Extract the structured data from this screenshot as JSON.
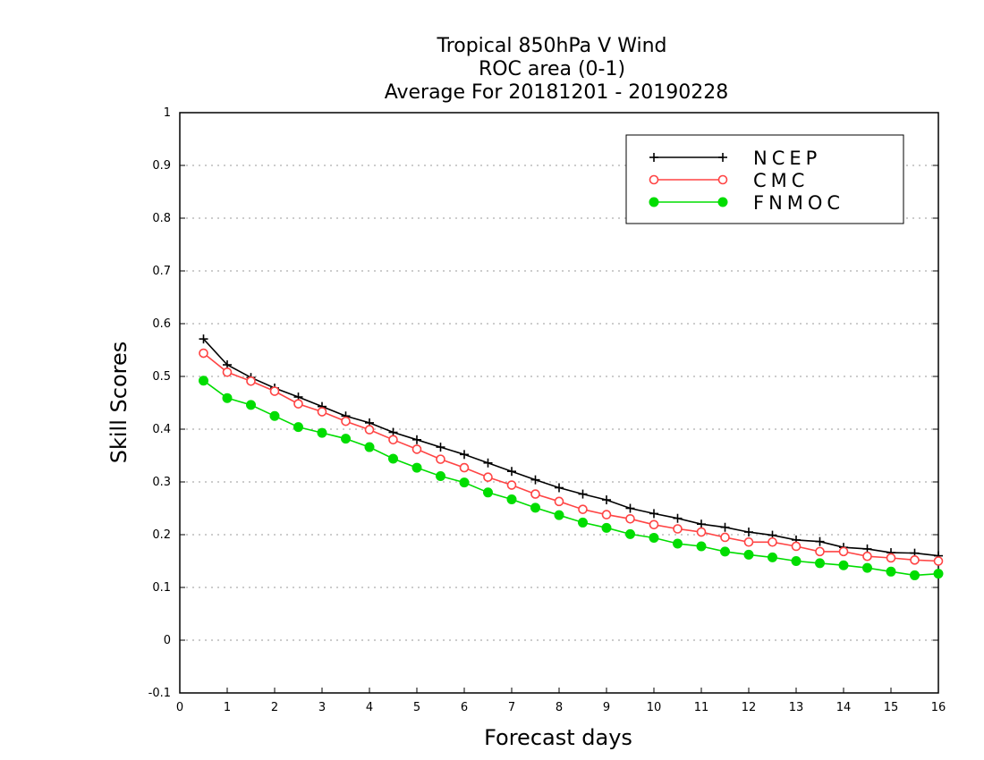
{
  "chart_data": {
    "type": "line",
    "title_lines": [
      "Tropical 850hPa V Wind",
      "ROC area (0-1)",
      "Average For 20181201 - 20190228"
    ],
    "xlabel": "Forecast days",
    "ylabel": "Skill Scores",
    "xlim": [
      0,
      16
    ],
    "ylim": [
      -0.1,
      1
    ],
    "xticks": [
      0,
      1,
      2,
      3,
      4,
      5,
      6,
      7,
      8,
      9,
      10,
      11,
      12,
      13,
      14,
      15,
      16
    ],
    "xtick_labels": [
      "0",
      "1",
      "2",
      "3",
      "4",
      "5",
      "6",
      "7",
      "8",
      "9",
      "10",
      "11",
      "12",
      "13",
      "14",
      "15",
      "16"
    ],
    "yticks": [
      -0.1,
      0,
      0.1,
      0.2,
      0.3,
      0.4,
      0.5,
      0.6,
      0.7,
      0.8,
      0.9,
      1
    ],
    "ytick_labels": [
      "-0.1",
      "0",
      "0.1",
      "0.2",
      "0.3",
      "0.4",
      "0.5",
      "0.6",
      "0.7",
      "0.8",
      "0.9",
      "1"
    ],
    "grid": "horizontal dotted",
    "legend_position": "top-right",
    "x": [
      0.5,
      1,
      1.5,
      2,
      2.5,
      3,
      3.5,
      4,
      4.5,
      5,
      5.5,
      6,
      6.5,
      7,
      7.5,
      8,
      8.5,
      9,
      9.5,
      10,
      10.5,
      11,
      11.5,
      12,
      12.5,
      13,
      13.5,
      14,
      14.5,
      15,
      15.5,
      16
    ],
    "series": [
      {
        "name": "NCEP",
        "color": "#000000",
        "marker": "plus",
        "values": [
          0.571,
          0.522,
          0.498,
          0.478,
          0.461,
          0.443,
          0.425,
          0.412,
          0.394,
          0.38,
          0.366,
          0.352,
          0.336,
          0.32,
          0.304,
          0.289,
          0.277,
          0.266,
          0.25,
          0.24,
          0.231,
          0.22,
          0.214,
          0.205,
          0.199,
          0.19,
          0.187,
          0.176,
          0.173,
          0.166,
          0.165,
          0.16
        ]
      },
      {
        "name": "CMC",
        "color": "#ff4444",
        "marker": "open-circle",
        "values": [
          0.544,
          0.508,
          0.491,
          0.472,
          0.448,
          0.433,
          0.415,
          0.399,
          0.38,
          0.362,
          0.343,
          0.327,
          0.309,
          0.294,
          0.277,
          0.263,
          0.248,
          0.238,
          0.23,
          0.219,
          0.211,
          0.205,
          0.195,
          0.186,
          0.186,
          0.178,
          0.168,
          0.168,
          0.159,
          0.156,
          0.152,
          0.15
        ]
      },
      {
        "name": "FNMOC",
        "color": "#00dd00",
        "marker": "filled-circle",
        "values": [
          0.492,
          0.459,
          0.446,
          0.425,
          0.404,
          0.393,
          0.382,
          0.366,
          0.344,
          0.327,
          0.311,
          0.299,
          0.28,
          0.267,
          0.251,
          0.237,
          0.223,
          0.213,
          0.201,
          0.194,
          0.183,
          0.178,
          0.168,
          0.162,
          0.157,
          0.15,
          0.146,
          0.142,
          0.137,
          0.13,
          0.123,
          0.126
        ]
      }
    ]
  }
}
